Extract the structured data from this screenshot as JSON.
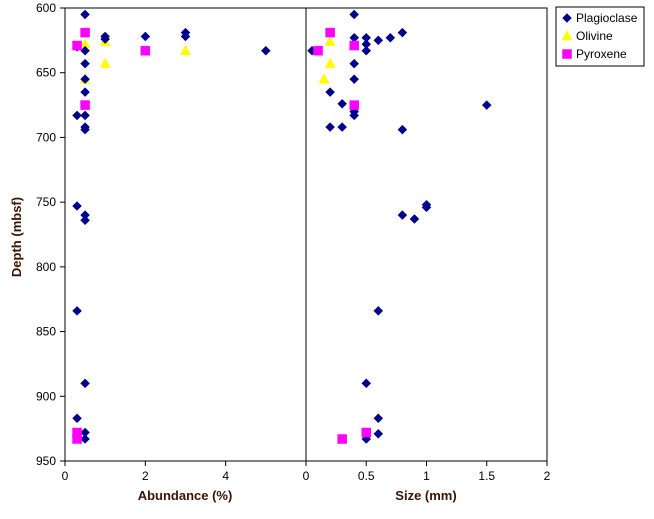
{
  "chart_data": {
    "type": "scatter",
    "ylabel": "Depth (mbsf)",
    "y_axis": {
      "range": [
        600,
        950
      ],
      "inverted": true,
      "ticks": [
        600,
        650,
        700,
        750,
        800,
        850,
        900,
        950
      ]
    },
    "legend": {
      "position": "top-right",
      "entries": [
        {
          "name": "Plagioclase",
          "marker": "diamond",
          "color": "#00008b"
        },
        {
          "name": "Olivine",
          "marker": "triangle",
          "color": "#ffff00"
        },
        {
          "name": "Pyroxene",
          "marker": "square",
          "color": "#ff00ff"
        }
      ]
    },
    "panels": [
      {
        "xlabel": "Abundance (%)",
        "xlim": [
          0,
          6
        ],
        "x_ticks": [
          0,
          2,
          4
        ],
        "series": [
          {
            "name": "Plagioclase",
            "marker": "diamond",
            "color": "#00008b",
            "points": [
              [
                0.5,
                605
              ],
              [
                1,
                622
              ],
              [
                1,
                624
              ],
              [
                2,
                622
              ],
              [
                3,
                619
              ],
              [
                3,
                622
              ],
              [
                5,
                633
              ],
              [
                0.3,
                630
              ],
              [
                0.5,
                633
              ],
              [
                0.5,
                643
              ],
              [
                0.5,
                655
              ],
              [
                0.5,
                665
              ],
              [
                0.3,
                683
              ],
              [
                0.5,
                683
              ],
              [
                0.5,
                692
              ],
              [
                0.5,
                694
              ],
              [
                0.3,
                753
              ],
              [
                0.5,
                760
              ],
              [
                0.5,
                764
              ],
              [
                0.3,
                834
              ],
              [
                0.5,
                890
              ],
              [
                0.3,
                917
              ],
              [
                0.5,
                928
              ],
              [
                0.5,
                933
              ]
            ]
          },
          {
            "name": "Olivine",
            "marker": "triangle",
            "color": "#ffff00",
            "points": [
              [
                0.5,
                628
              ],
              [
                1,
                626
              ],
              [
                3,
                633
              ],
              [
                1,
                643
              ],
              [
                0.5,
                655
              ]
            ]
          },
          {
            "name": "Pyroxene",
            "marker": "square",
            "color": "#ff00ff",
            "points": [
              [
                0.3,
                629
              ],
              [
                0.5,
                619
              ],
              [
                2,
                633
              ],
              [
                0.5,
                675
              ],
              [
                0.3,
                928
              ],
              [
                0.3,
                933
              ]
            ]
          }
        ]
      },
      {
        "xlabel": "Size (mm)",
        "xlim": [
          0,
          2
        ],
        "x_ticks": [
          0,
          0.5,
          1,
          1.5,
          2
        ],
        "series": [
          {
            "name": "Plagioclase",
            "marker": "diamond",
            "color": "#00008b",
            "points": [
              [
                0.4,
                605
              ],
              [
                0.4,
                623
              ],
              [
                0.5,
                623
              ],
              [
                0.6,
                625
              ],
              [
                0.7,
                623
              ],
              [
                0.8,
                619
              ],
              [
                0.5,
                628
              ],
              [
                0.5,
                633
              ],
              [
                0.05,
                633
              ],
              [
                0.1,
                633
              ],
              [
                0.4,
                643
              ],
              [
                0.4,
                655
              ],
              [
                0.2,
                665
              ],
              [
                0.3,
                674
              ],
              [
                0.4,
                680
              ],
              [
                0.4,
                683
              ],
              [
                0.2,
                692
              ],
              [
                0.3,
                692
              ],
              [
                0.8,
                694
              ],
              [
                1.5,
                675
              ],
              [
                1,
                752
              ],
              [
                1,
                754
              ],
              [
                0.8,
                760
              ],
              [
                0.9,
                763
              ],
              [
                0.6,
                834
              ],
              [
                0.5,
                890
              ],
              [
                0.6,
                917
              ],
              [
                0.6,
                929
              ],
              [
                0.5,
                933
              ]
            ]
          },
          {
            "name": "Olivine",
            "marker": "triangle",
            "color": "#ffff00",
            "points": [
              [
                0.2,
                626
              ],
              [
                0.2,
                643
              ],
              [
                0.15,
                655
              ]
            ]
          },
          {
            "name": "Pyroxene",
            "marker": "square",
            "color": "#ff00ff",
            "points": [
              [
                0.2,
                619
              ],
              [
                0.1,
                633
              ],
              [
                0.4,
                629
              ],
              [
                0.4,
                675
              ],
              [
                0.3,
                933
              ],
              [
                0.5,
                928
              ]
            ]
          }
        ]
      }
    ]
  }
}
